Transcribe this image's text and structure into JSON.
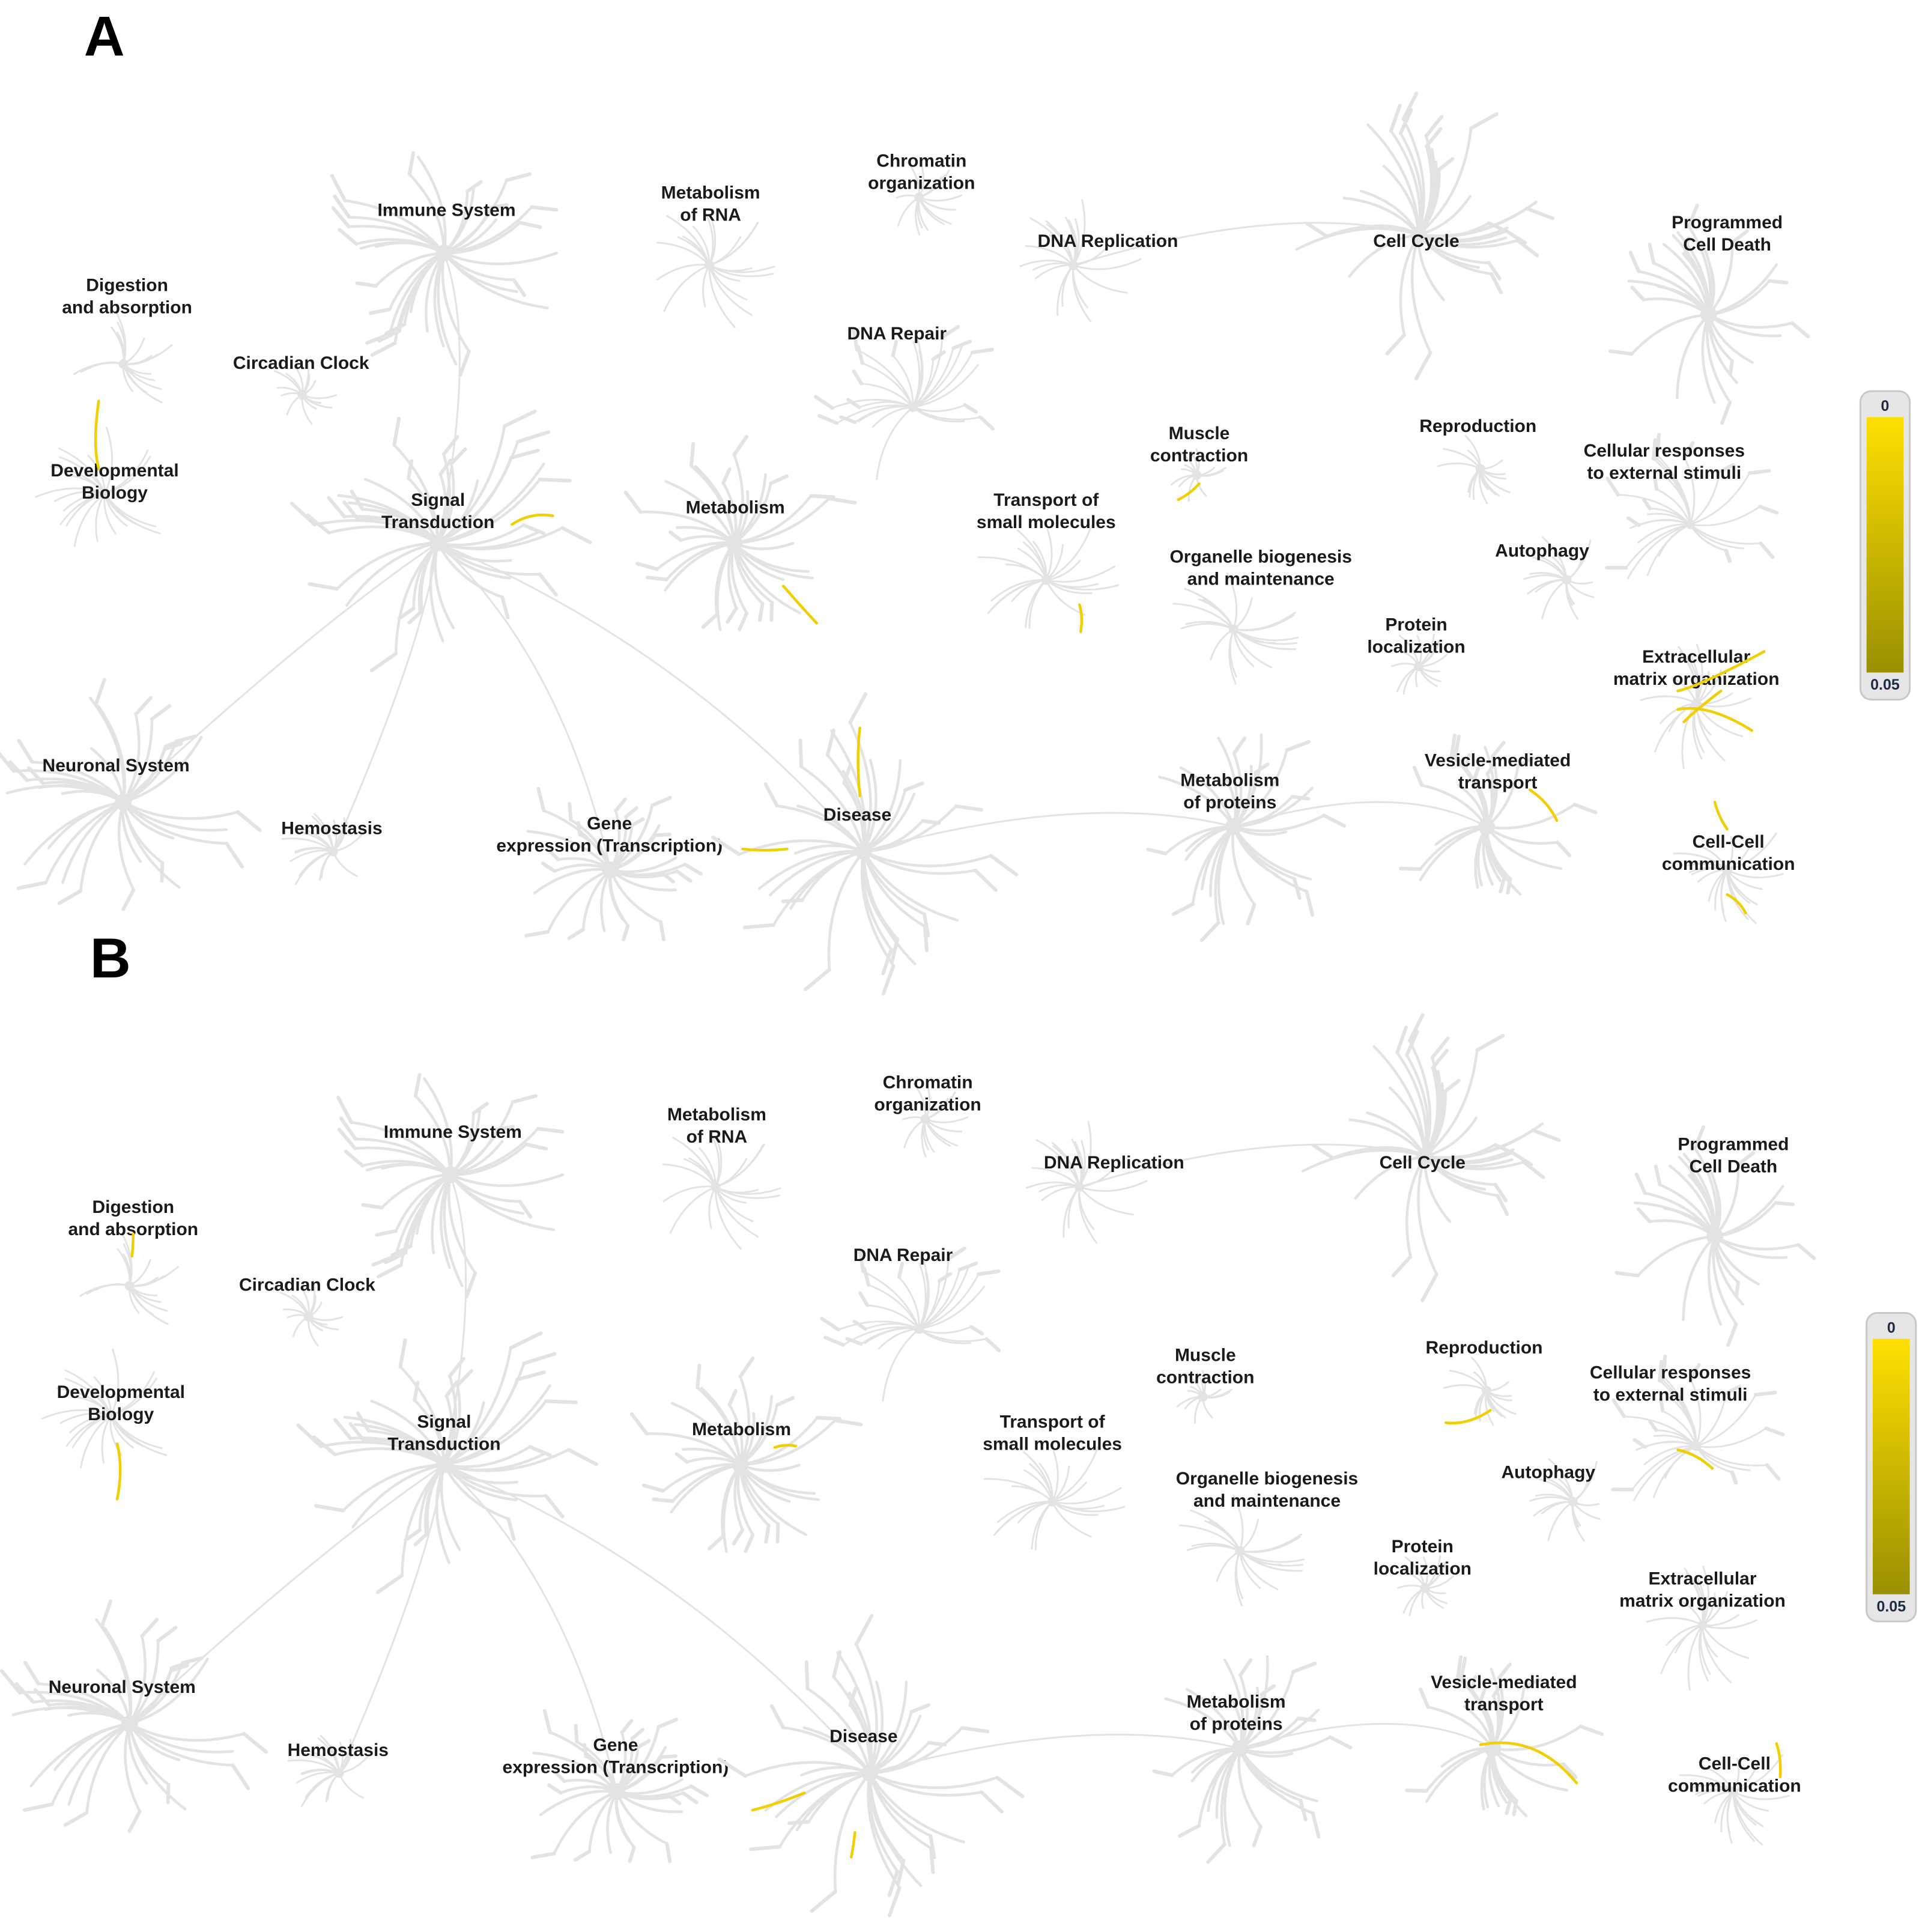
{
  "panels": [
    {
      "letter": "A"
    },
    {
      "letter": "B"
    }
  ],
  "nodes": [
    {
      "id": "immune",
      "lines": [
        "Immune System"
      ]
    },
    {
      "id": "rna",
      "lines": [
        "Metabolism",
        "of RNA"
      ]
    },
    {
      "id": "chromatin",
      "lines": [
        "Chromatin",
        "organization"
      ]
    },
    {
      "id": "dnarep",
      "lines": [
        "DNA Replication"
      ]
    },
    {
      "id": "cellcycle",
      "lines": [
        "Cell Cycle"
      ]
    },
    {
      "id": "pcd",
      "lines": [
        "Programmed",
        "Cell Death"
      ]
    },
    {
      "id": "digestion",
      "lines": [
        "Digestion",
        "and absorption"
      ]
    },
    {
      "id": "circadian",
      "lines": [
        "Circadian Clock"
      ]
    },
    {
      "id": "dnarepair",
      "lines": [
        "DNA Repair"
      ]
    },
    {
      "id": "devbio",
      "lines": [
        "Developmental",
        "Biology"
      ]
    },
    {
      "id": "signal",
      "lines": [
        "Signal",
        "Transduction"
      ]
    },
    {
      "id": "metabolism",
      "lines": [
        "Metabolism"
      ]
    },
    {
      "id": "muscle",
      "lines": [
        "Muscle",
        "contraction"
      ]
    },
    {
      "id": "transport",
      "lines": [
        "Transport of",
        "small molecules"
      ]
    },
    {
      "id": "reproduction",
      "lines": [
        "Reproduction"
      ]
    },
    {
      "id": "cellresp",
      "lines": [
        "Cellular responses",
        "to external stimuli"
      ]
    },
    {
      "id": "autophagy",
      "lines": [
        "Autophagy"
      ]
    },
    {
      "id": "organelle",
      "lines": [
        "Organelle biogenesis",
        "and maintenance"
      ]
    },
    {
      "id": "protloc",
      "lines": [
        "Protein",
        "localization"
      ]
    },
    {
      "id": "ecm",
      "lines": [
        "Extracellular",
        "matrix organization"
      ]
    },
    {
      "id": "neuronal",
      "lines": [
        "Neuronal System"
      ]
    },
    {
      "id": "hemostasis",
      "lines": [
        "Hemostasis"
      ]
    },
    {
      "id": "geneexp",
      "lines": [
        "Gene",
        "expression (Transcription)"
      ]
    },
    {
      "id": "disease",
      "lines": [
        "Disease"
      ]
    },
    {
      "id": "metprot",
      "lines": [
        "Metabolism",
        "of proteins"
      ]
    },
    {
      "id": "vesicle",
      "lines": [
        "Vesicle-mediated",
        "transport"
      ]
    },
    {
      "id": "cellcell",
      "lines": [
        "Cell-Cell",
        "communication"
      ]
    }
  ],
  "colorbar": {
    "min_label": "0",
    "max_label": "0.05",
    "color_low": "#ffe000",
    "color_high": "#9a9000"
  },
  "colors": {
    "branch": "#e3e3e3",
    "highlight": "#f2cf00"
  }
}
